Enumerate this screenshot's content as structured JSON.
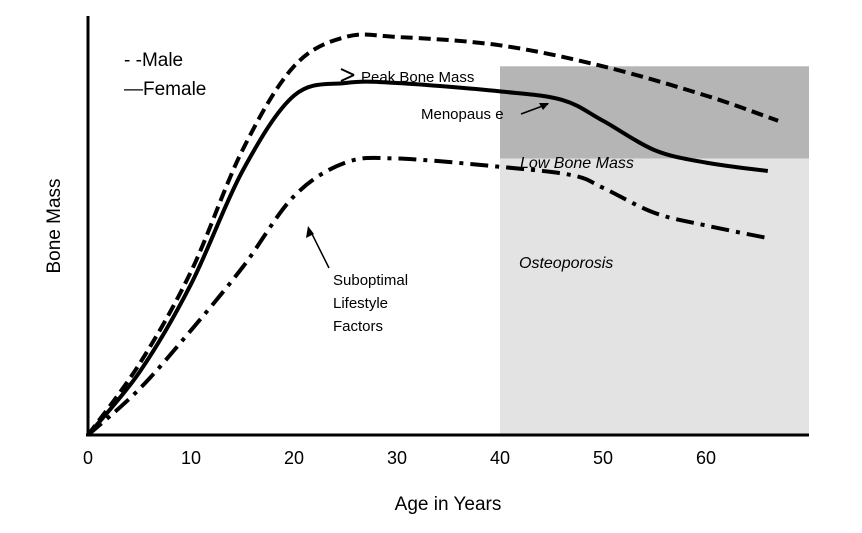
{
  "chart_data": {
    "type": "line",
    "title": "",
    "xlabel": "Age in Years",
    "ylabel": "Bone Mass",
    "xlim": [
      0,
      70
    ],
    "ylim": [
      0,
      100
    ],
    "x_ticks": [
      0,
      10,
      20,
      30,
      40,
      50,
      60
    ],
    "grid": false,
    "legend": {
      "placement": "top-left",
      "entries": [
        {
          "marker": "- -",
          "label": "Male",
          "series": "male"
        },
        {
          "marker": "—",
          "label": "Female",
          "series": "female"
        }
      ]
    },
    "series": [
      {
        "name": "Male",
        "key": "male",
        "color": "#000000",
        "style": "dashed",
        "x": [
          0,
          5,
          10,
          15,
          20,
          25,
          30,
          40,
          50,
          60,
          67
        ],
        "y": [
          0,
          17,
          39,
          68,
          88,
          95,
          95,
          93,
          88,
          81,
          75
        ]
      },
      {
        "name": "Female",
        "key": "female",
        "color": "#000000",
        "style": "solid",
        "x": [
          0,
          5,
          10,
          15,
          20,
          25,
          30,
          40,
          46,
          50,
          55,
          60,
          66
        ],
        "y": [
          0,
          15,
          36,
          63,
          81,
          84,
          84,
          82,
          80,
          75,
          68,
          65,
          63
        ]
      },
      {
        "name": "Suboptimal Lifestyle Factors",
        "key": "suboptimal",
        "color": "#000000",
        "style": "dashdot",
        "x": [
          0,
          5,
          10,
          15,
          20,
          25,
          30,
          40,
          47,
          50,
          55,
          60,
          66
        ],
        "y": [
          0,
          11,
          25,
          40,
          57,
          65,
          66,
          64,
          62,
          59,
          53,
          50,
          47
        ]
      }
    ],
    "zones": [
      {
        "label": "Low Bone Mass",
        "color": "#b5b5b5",
        "x_from": 40,
        "x_to": 70,
        "y_from": 66,
        "y_to": 88
      },
      {
        "label": "Osteoporosis",
        "color": "#e3e3e3",
        "x_from": 40,
        "x_to": 70,
        "y_from": 0,
        "y_to": 66
      }
    ],
    "annotations": [
      {
        "text": "Peak Bone Mass"
      },
      {
        "text": "Menopaus e"
      },
      {
        "lines": [
          "Suboptimal",
          "Lifestyle",
          "Factors"
        ]
      }
    ]
  }
}
